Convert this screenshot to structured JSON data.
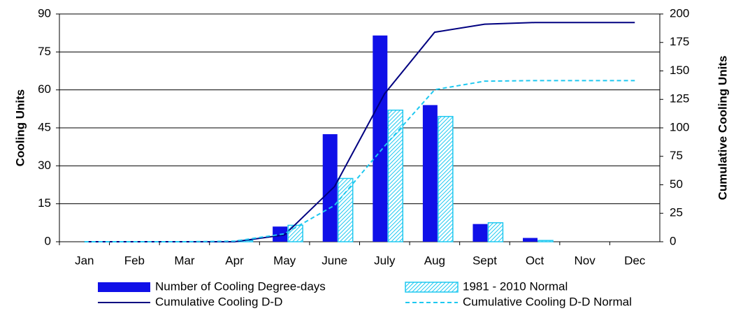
{
  "chart_data": {
    "type": "bar",
    "y_label": "Cooling Units",
    "y2_label": "Cumulative Cooling  Units",
    "categories": [
      "Jan",
      "Feb",
      "Mar",
      "Apr",
      "May",
      "June",
      "July",
      "Aug",
      "Sept",
      "Oct",
      "Nov",
      "Dec"
    ],
    "ylim": [
      0,
      90
    ],
    "yticks": [
      0,
      15,
      30,
      45,
      60,
      75,
      90
    ],
    "y2lim": [
      0,
      200
    ],
    "y2ticks": [
      0,
      25,
      50,
      75,
      100,
      125,
      150,
      175,
      200
    ],
    "grid": true,
    "ytick_color": "#0000ff",
    "y2tick_color": "#00c8f0",
    "series": [
      {
        "name": "Number of Cooling Degree-days",
        "type": "bar",
        "color": "#1010e8",
        "pattern": "solid",
        "values": [
          0,
          0,
          0,
          0,
          6,
          42.5,
          81.5,
          54,
          7,
          1.5,
          0,
          0
        ]
      },
      {
        "name": "1981 - 2010 Normal",
        "type": "bar",
        "color": "#1ec8f0",
        "pattern": "hatched",
        "values": [
          0,
          0,
          0,
          0.5,
          6.5,
          25,
          52,
          49.5,
          7.5,
          0.5,
          0,
          0
        ]
      },
      {
        "name": "Cumulative Cooling D-D",
        "type": "line",
        "axis": "y2",
        "color": "#000080",
        "dash": "solid",
        "values": [
          0,
          0,
          0,
          0,
          6,
          48.5,
          130,
          184,
          191,
          192.5,
          192.5,
          192.5
        ]
      },
      {
        "name": "Cumulative Cooling D-D Normal",
        "type": "line",
        "axis": "y2",
        "color": "#1ec8f0",
        "dash": "dashed",
        "values": [
          0,
          0,
          0,
          0.5,
          7,
          32,
          84,
          133.5,
          141,
          141.5,
          141.5,
          141.5
        ]
      }
    ]
  }
}
